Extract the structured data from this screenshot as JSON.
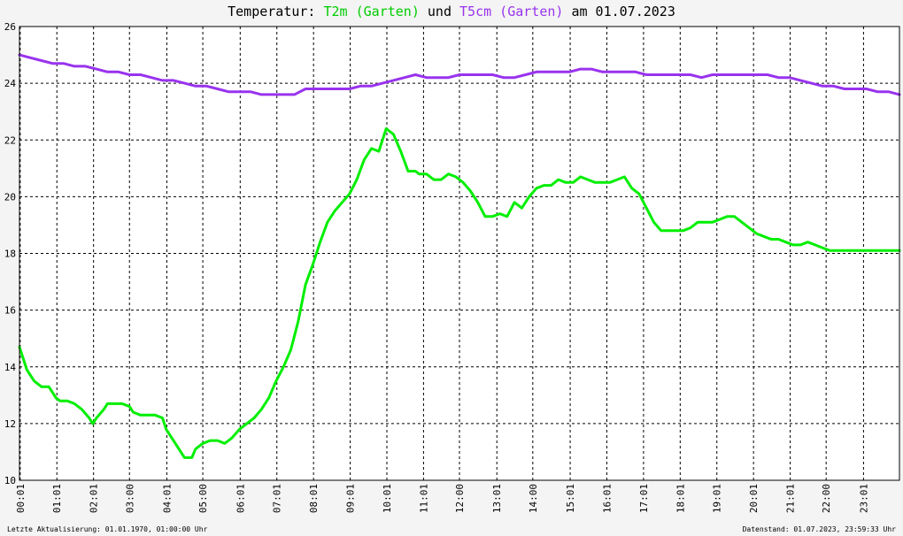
{
  "title": {
    "prefix": "Temperatur: ",
    "series1": "T2m (Garten)",
    "middle": " und ",
    "series2": "T5cm (Garten)",
    "suffix": " am 01.07.2023"
  },
  "footer": {
    "left": "Letzte Aktualisierung: 01.01.1970, 01:00:00 Uhr",
    "right": "Datenstand: 01.07.2023, 23:59:33 Uhr"
  },
  "colors": {
    "t2m": "#00ee00",
    "t5cm": "#9933ee",
    "grid": "#000000",
    "plot_bg": "#ffffff"
  },
  "chart_data": {
    "type": "line",
    "title": "Temperatur: T2m (Garten) und T5cm (Garten) am 01.07.2023",
    "x_unit": "hours",
    "xlim": [
      0,
      24
    ],
    "ylim": [
      10,
      26
    ],
    "y_ticks": [
      10,
      12,
      14,
      16,
      18,
      20,
      22,
      24,
      26
    ],
    "x_tick_positions": [
      0.02,
      1.02,
      2.02,
      3.0,
      4.02,
      5.0,
      6.02,
      7.02,
      8.02,
      9.02,
      10.02,
      11.02,
      12.0,
      13.02,
      14.0,
      15.02,
      16.02,
      17.02,
      18.02,
      19.02,
      20.02,
      21.02,
      22.0,
      23.02
    ],
    "x_tick_labels": [
      "00:01",
      "01:01",
      "02:01",
      "03:00",
      "04:01",
      "05:00",
      "06:01",
      "07:01",
      "08:01",
      "09:01",
      "10:01",
      "11:01",
      "12:00",
      "13:01",
      "14:00",
      "15:01",
      "16:01",
      "17:01",
      "18:01",
      "19:01",
      "20:01",
      "21:01",
      "22:00",
      "23:01"
    ],
    "grid": true,
    "series": [
      {
        "name": "T2m (Garten)",
        "color": "#00ee00",
        "x": [
          0.0,
          0.2,
          0.4,
          0.6,
          0.8,
          1.0,
          1.1,
          1.3,
          1.5,
          1.7,
          1.9,
          2.0,
          2.1,
          2.3,
          2.4,
          2.6,
          2.8,
          3.0,
          3.1,
          3.3,
          3.5,
          3.7,
          3.9,
          4.0,
          4.1,
          4.3,
          4.5,
          4.7,
          4.8,
          5.0,
          5.2,
          5.4,
          5.6,
          5.8,
          6.0,
          6.2,
          6.4,
          6.6,
          6.8,
          7.0,
          7.2,
          7.4,
          7.6,
          7.8,
          8.0,
          8.2,
          8.4,
          8.6,
          8.8,
          9.0,
          9.2,
          9.4,
          9.6,
          9.8,
          10.0,
          10.2,
          10.4,
          10.6,
          10.8,
          10.9,
          11.1,
          11.3,
          11.5,
          11.7,
          11.9,
          12.1,
          12.3,
          12.5,
          12.7,
          12.9,
          13.1,
          13.3,
          13.5,
          13.7,
          13.9,
          14.1,
          14.3,
          14.5,
          14.7,
          14.9,
          15.1,
          15.3,
          15.5,
          15.7,
          15.9,
          16.1,
          16.3,
          16.5,
          16.7,
          16.9,
          17.1,
          17.3,
          17.5,
          17.7,
          17.9,
          18.1,
          18.3,
          18.5,
          18.7,
          18.9,
          19.1,
          19.3,
          19.5,
          19.7,
          19.9,
          20.1,
          20.3,
          20.5,
          20.7,
          20.9,
          21.1,
          21.3,
          21.5,
          21.7,
          21.9,
          22.1,
          22.3,
          22.5,
          22.7,
          22.9,
          23.1,
          23.3,
          23.5,
          23.7,
          23.9,
          24.0
        ],
        "values": [
          14.7,
          13.9,
          13.5,
          13.3,
          13.3,
          12.9,
          12.8,
          12.8,
          12.7,
          12.5,
          12.2,
          12.0,
          12.2,
          12.5,
          12.7,
          12.7,
          12.7,
          12.6,
          12.4,
          12.3,
          12.3,
          12.3,
          12.2,
          11.8,
          11.6,
          11.2,
          10.8,
          10.8,
          11.1,
          11.3,
          11.4,
          11.4,
          11.3,
          11.5,
          11.8,
          12.0,
          12.2,
          12.5,
          12.9,
          13.5,
          14.0,
          14.6,
          15.6,
          16.9,
          17.6,
          18.4,
          19.1,
          19.5,
          19.8,
          20.1,
          20.6,
          21.3,
          21.7,
          21.6,
          22.4,
          22.2,
          21.6,
          20.9,
          20.9,
          20.8,
          20.8,
          20.6,
          20.6,
          20.8,
          20.7,
          20.5,
          20.2,
          19.8,
          19.3,
          19.3,
          19.4,
          19.3,
          19.8,
          19.6,
          20.0,
          20.3,
          20.4,
          20.4,
          20.6,
          20.5,
          20.5,
          20.7,
          20.6,
          20.5,
          20.5,
          20.5,
          20.6,
          20.7,
          20.3,
          20.1,
          19.6,
          19.1,
          18.8,
          18.8,
          18.8,
          18.8,
          18.9,
          19.1,
          19.1,
          19.1,
          19.2,
          19.3,
          19.3,
          19.1,
          18.9,
          18.7,
          18.6,
          18.5,
          18.5,
          18.4,
          18.3,
          18.3,
          18.4,
          18.3,
          18.2,
          18.1,
          18.1,
          18.1,
          18.1,
          18.1,
          18.1,
          18.1,
          18.1,
          18.1,
          18.1,
          18.1
        ]
      },
      {
        "name": "T5cm (Garten)",
        "color": "#9933ee",
        "x": [
          0.0,
          0.3,
          0.6,
          0.9,
          1.2,
          1.5,
          1.8,
          2.1,
          2.4,
          2.7,
          3.0,
          3.3,
          3.6,
          3.9,
          4.2,
          4.5,
          4.8,
          5.1,
          5.4,
          5.7,
          6.0,
          6.3,
          6.6,
          6.9,
          7.2,
          7.5,
          7.8,
          8.1,
          8.4,
          8.7,
          9.0,
          9.3,
          9.6,
          9.9,
          10.2,
          10.5,
          10.8,
          11.1,
          11.4,
          11.7,
          12.0,
          12.3,
          12.6,
          12.9,
          13.2,
          13.5,
          13.8,
          14.1,
          14.4,
          14.7,
          15.0,
          15.3,
          15.6,
          15.9,
          16.2,
          16.5,
          16.8,
          17.1,
          17.4,
          17.7,
          18.0,
          18.3,
          18.6,
          18.9,
          19.2,
          19.5,
          19.8,
          20.1,
          20.4,
          20.7,
          21.0,
          21.3,
          21.6,
          21.9,
          22.2,
          22.5,
          22.8,
          23.1,
          23.4,
          23.7,
          24.0
        ],
        "values": [
          25.0,
          24.9,
          24.8,
          24.7,
          24.7,
          24.6,
          24.6,
          24.5,
          24.4,
          24.4,
          24.3,
          24.3,
          24.2,
          24.1,
          24.1,
          24.0,
          23.9,
          23.9,
          23.8,
          23.7,
          23.7,
          23.7,
          23.6,
          23.6,
          23.6,
          23.6,
          23.8,
          23.8,
          23.8,
          23.8,
          23.8,
          23.9,
          23.9,
          24.0,
          24.1,
          24.2,
          24.3,
          24.2,
          24.2,
          24.2,
          24.3,
          24.3,
          24.3,
          24.3,
          24.2,
          24.2,
          24.3,
          24.4,
          24.4,
          24.4,
          24.4,
          24.5,
          24.5,
          24.4,
          24.4,
          24.4,
          24.4,
          24.3,
          24.3,
          24.3,
          24.3,
          24.3,
          24.2,
          24.3,
          24.3,
          24.3,
          24.3,
          24.3,
          24.3,
          24.2,
          24.2,
          24.1,
          24.0,
          23.9,
          23.9,
          23.8,
          23.8,
          23.8,
          23.7,
          23.7,
          23.6
        ]
      }
    ]
  }
}
